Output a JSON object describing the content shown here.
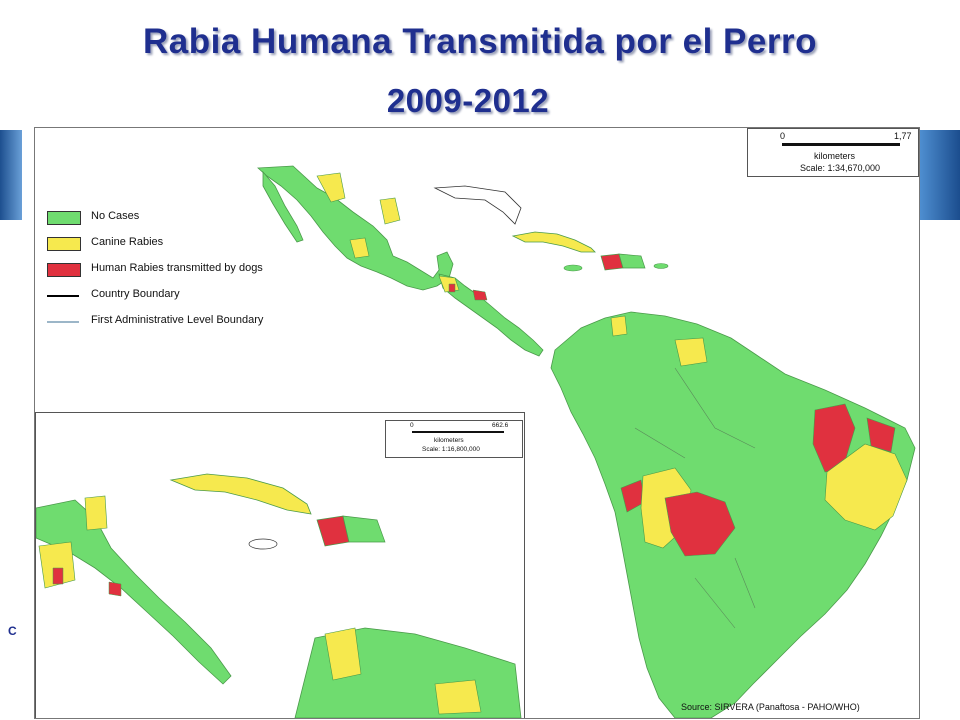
{
  "title": {
    "line1": "Rabia Humana Transmitida por el Perro",
    "line2": "2009-2012"
  },
  "side_mark": "C",
  "legend": {
    "items": [
      {
        "label": "No Cases",
        "color": "#6fdc6f"
      },
      {
        "label": "Canine Rabies",
        "color": "#f6e94e"
      },
      {
        "label": "Human Rabies transmitted by dogs",
        "color": "#e0313f"
      }
    ],
    "lines": [
      {
        "label": "Country Boundary",
        "color": "#000000"
      },
      {
        "label": "First Administrative Level Boundary",
        "color": "#9cb6c8"
      }
    ]
  },
  "scale_main": {
    "zero": "0",
    "max": "1,77",
    "unit": "kilometers",
    "scale": "Scale: 1:34,670,000"
  },
  "scale_inset": {
    "zero": "0",
    "max": "662.6",
    "unit": "kilometers",
    "scale": "Scale: 1:16,800,000"
  },
  "source": "Source: SIRVERA (Panaftosa - PAHO/WHO)",
  "colors": {
    "title": "#1f2f8f",
    "no_cases": "#6fdc6f",
    "canine": "#f6e94e",
    "human": "#e0313f",
    "water": "#ffffff"
  }
}
